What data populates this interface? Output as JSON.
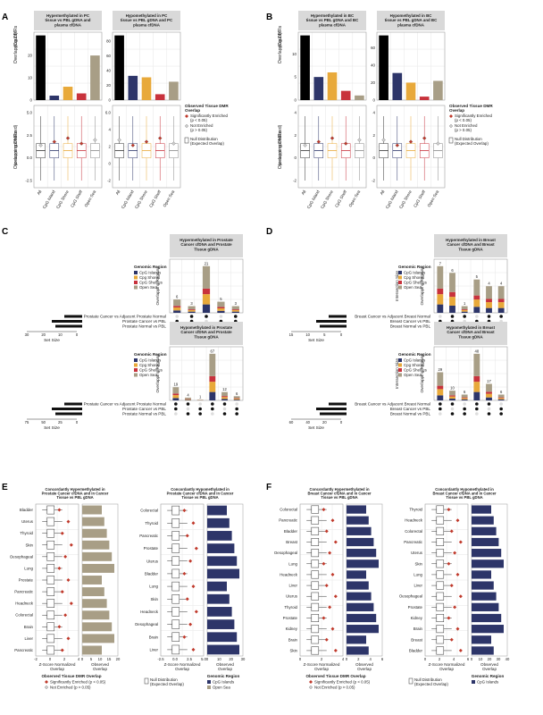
{
  "panels": {
    "A": {
      "letter": "A",
      "facets": [
        {
          "title": [
            "Hypermethylated in PC",
            "tissue vs PBL gDNA and",
            "plasma cfDNA"
          ],
          "counts": [
            29,
            2,
            6,
            3,
            20
          ],
          "count_ticks": [
            0,
            10,
            20
          ],
          "z_ticks": [
            "5.0",
            "2.5",
            "0.0",
            "-2.5"
          ]
        },
        {
          "title": [
            "Hypomethylated in PC",
            "tissue vs PBL gDNA and PC",
            "plasma cfDNA"
          ],
          "counts": [
            88,
            33,
            31,
            8,
            25
          ],
          "count_ticks": [
            0,
            20,
            40,
            60,
            80
          ],
          "z_ticks": [
            "6.0",
            "4",
            "2",
            "0",
            "-2"
          ]
        }
      ],
      "ylabel_count": [
        "Overlapping DMRs",
        "(Count)"
      ],
      "ylabel_z": [
        "Overlapping DMRs",
        "(z-score normalized)"
      ]
    },
    "B": {
      "letter": "B",
      "facets": [
        {
          "title": [
            "Hypermethylated in BC",
            "tissue vs PBL gDNA and BC",
            "plasma cfDNA"
          ],
          "counts": [
            14,
            5,
            6,
            2,
            1
          ],
          "count_ticks": [
            0,
            5,
            10
          ],
          "z_ticks": [
            "4",
            "2",
            "0",
            "-2"
          ]
        },
        {
          "title": [
            "Hypomethylated in BC",
            "tissue vs PBL gDNA and BC",
            "plasma cfDNA"
          ],
          "counts": [
            74,
            31,
            20,
            4,
            22
          ],
          "count_ticks": [
            0,
            20,
            40,
            60
          ],
          "z_ticks": [
            "4",
            "2",
            "0",
            "-2"
          ]
        }
      ],
      "ylabel_count": [
        "Overlapping DMRs",
        "(Count)"
      ],
      "ylabel_z": [
        "Overlapping DMRs",
        "(z-score normalized)"
      ]
    },
    "categories": [
      "All",
      "CpG Island",
      "CpG Shore",
      "CpG Shelf",
      "Open Sea"
    ],
    "legend_AB": {
      "title": [
        "Observed Tissue DMR",
        "Overlap"
      ],
      "enriched": [
        "Significantly Enriched",
        "(p < 0.05)"
      ],
      "not_enriched": [
        "Not Enriched",
        "(p > 0.05)"
      ],
      "null": [
        "Null Distribution",
        "(Expected Overlap)"
      ]
    },
    "C": {
      "letter": "C",
      "top_title": [
        "Hypermethylated in Prostate",
        "Cancer cfDNA and Prostate",
        "Tissue gDNA"
      ],
      "top_values": [
        6,
        3,
        21,
        5,
        3
      ],
      "bottom_title": [
        "Hypomethylated in Prostate",
        "Cancer cfDNA and Prostate",
        "Tissue gDNA"
      ],
      "bottom_values": [
        19,
        4,
        1,
        67,
        12,
        6
      ],
      "sets": [
        "Prostate Cancer vs Adjacent Prostate Normal",
        "Prostate Cancer vs PBL",
        "Prostate Normal vs PBL"
      ],
      "set_size_label": "Set Size",
      "top_setsize_ticks": [
        "30",
        "20",
        "10",
        "0"
      ],
      "bottom_setsize_ticks": [
        "75",
        "50",
        "25",
        "0"
      ],
      "ylabel": "Overlapping Regions",
      "legend_title": "Genomic Region",
      "legend_items": [
        "CpG Islands",
        "Cpg Shores",
        "CpG Shelves",
        "Open Sea"
      ]
    },
    "D": {
      "letter": "D",
      "top_title": [
        "Hypermethylated in Breast",
        "Cancer cfDNA and Breast",
        "Tissue gDNA"
      ],
      "top_values": [
        7,
        6,
        1,
        5,
        4,
        4
      ],
      "bottom_title": [
        "Hypomethylated in Breast",
        "Cancer cfDNA and Breast",
        "Tissue gDNA"
      ],
      "bottom_values": [
        29,
        10,
        6,
        48,
        17,
        6
      ],
      "sets": [
        "Breast Cancer vs Adjacent Breast Normal",
        "Breast Cancer vs PBL",
        "Breast Normal vs PBL"
      ],
      "set_size_label": "Set Size",
      "top_setsize_ticks": [
        "15",
        "10",
        "5",
        "0"
      ],
      "bottom_setsize_ticks": [
        "60",
        "40",
        "20",
        "0"
      ],
      "ylabel": "Overlapping Regions",
      "ylabel_side": "Intersection Size",
      "legend_title": "Genomic Region",
      "legend_items": [
        "CpG Islands",
        "Cpg Shores",
        "CpG Shelves",
        "Open Sea"
      ]
    },
    "E": {
      "letter": "E",
      "left_title": [
        "Concordantly Hypermethylated in",
        "Prostate Cancer cfDNA and in Cancer",
        "Tissue vs PBL gDNA"
      ],
      "left_rows": [
        "Bladder",
        "Uterus",
        "Thyroid",
        "Skin",
        "Oesophageal",
        "Lung",
        "Prostate",
        "Pancreatic",
        "Headneck",
        "Colorectal",
        "Brain",
        "Liver",
        "Pancreatic"
      ],
      "right_title": [
        "Concordantly Hypomethylated in",
        "Prostate Cancer cfDNA and in Cancer",
        "Tissue vs PBL gDNA"
      ],
      "right_rows": [
        "Colorectal",
        "Thyroid",
        "Pancreatic",
        "Prostate",
        "Uterus",
        "Bladder",
        "Lung",
        "Skin",
        "Headneck",
        "Oesophageal",
        "Brain",
        "Liver"
      ],
      "z_label": [
        "Z-Score Normalized",
        "Overlap"
      ],
      "obs_label": [
        "Observed",
        "Overlap"
      ],
      "left_z_ticks": [
        "-2",
        "0",
        "2",
        "4"
      ],
      "left_obs_ticks": [
        "0",
        "5",
        "10",
        "15",
        "20"
      ],
      "right_z_ticks": [
        "-2.5",
        "0.0",
        "2.5",
        "5.0"
      ],
      "right_obs_ticks": [
        "0",
        "10",
        "20",
        "30"
      ],
      "legend_obs_title": "Observed Tissue DMR Overlap",
      "legend_enriched": "Significantly Enriched (p < 0.05)",
      "legend_not_enriched": "Not Enriched (p > 0.05)",
      "legend_null": [
        "Null Distribution",
        "(Expected Overlap)"
      ],
      "legend_region_title": "Genomic Region",
      "legend_regions": [
        "CpG Islands",
        "Open Sea"
      ]
    },
    "F": {
      "letter": "F",
      "left_title": [
        "Concordantly Hypermethylated in",
        "Breast Cancer cfDNA and in Cancer",
        "Tissue vs PBL gDNA"
      ],
      "left_rows": [
        "Colorectal",
        "Pancreatic",
        "Bladder",
        "Breast",
        "Oesophageal",
        "Lung",
        "Headneck",
        "Liver",
        "Uterus",
        "Thyroid",
        "Prostate",
        "Kidney",
        "Brain",
        "Skin"
      ],
      "right_title": [
        "Concordantly Hypomethylated in",
        "Breast Cancer cfDNA and in Cancer",
        "Tissue vs PBL gDNA"
      ],
      "right_rows": [
        "Thyroid",
        "Headneck",
        "Colorectal",
        "Pancreatic",
        "Uterus",
        "Skin",
        "Lung",
        "Liver",
        "Oesophageal",
        "Prostate",
        "Kidney",
        "Brain",
        "Breast",
        "Bladder"
      ],
      "z_label": [
        "Z-Score Normalized",
        "Overlap"
      ],
      "obs_label": [
        "Observed",
        "Overlap"
      ],
      "left_z_ticks": [
        "0",
        "2",
        "4"
      ],
      "left_obs_ticks": [
        "0",
        "2",
        "4",
        "6"
      ],
      "right_z_ticks": [
        "0",
        "2",
        "4",
        "6"
      ],
      "right_obs_ticks": [
        "0",
        "10",
        "20",
        "30",
        "40"
      ],
      "legend_obs_title": "Observed Tissue DMR Overlap",
      "legend_enriched": "Significantly Enriched (p < 0.05)",
      "legend_not_enriched": "Not Enriched (p > 0.05)",
      "legend_null": [
        "Null Distribution",
        "(Expected Overlap)"
      ],
      "legend_region_title": "Genomic Region",
      "legend_regions": [
        "CpG Islands"
      ]
    }
  },
  "colors": {
    "black": "#000000",
    "island": "#2d3569",
    "shore": "#e8a93a",
    "shelf": "#c8323c",
    "opensea": "#a89e86",
    "enriched": "#c0392b",
    "grid": "#e6e6e6",
    "strip": "#d9d9d9"
  }
}
